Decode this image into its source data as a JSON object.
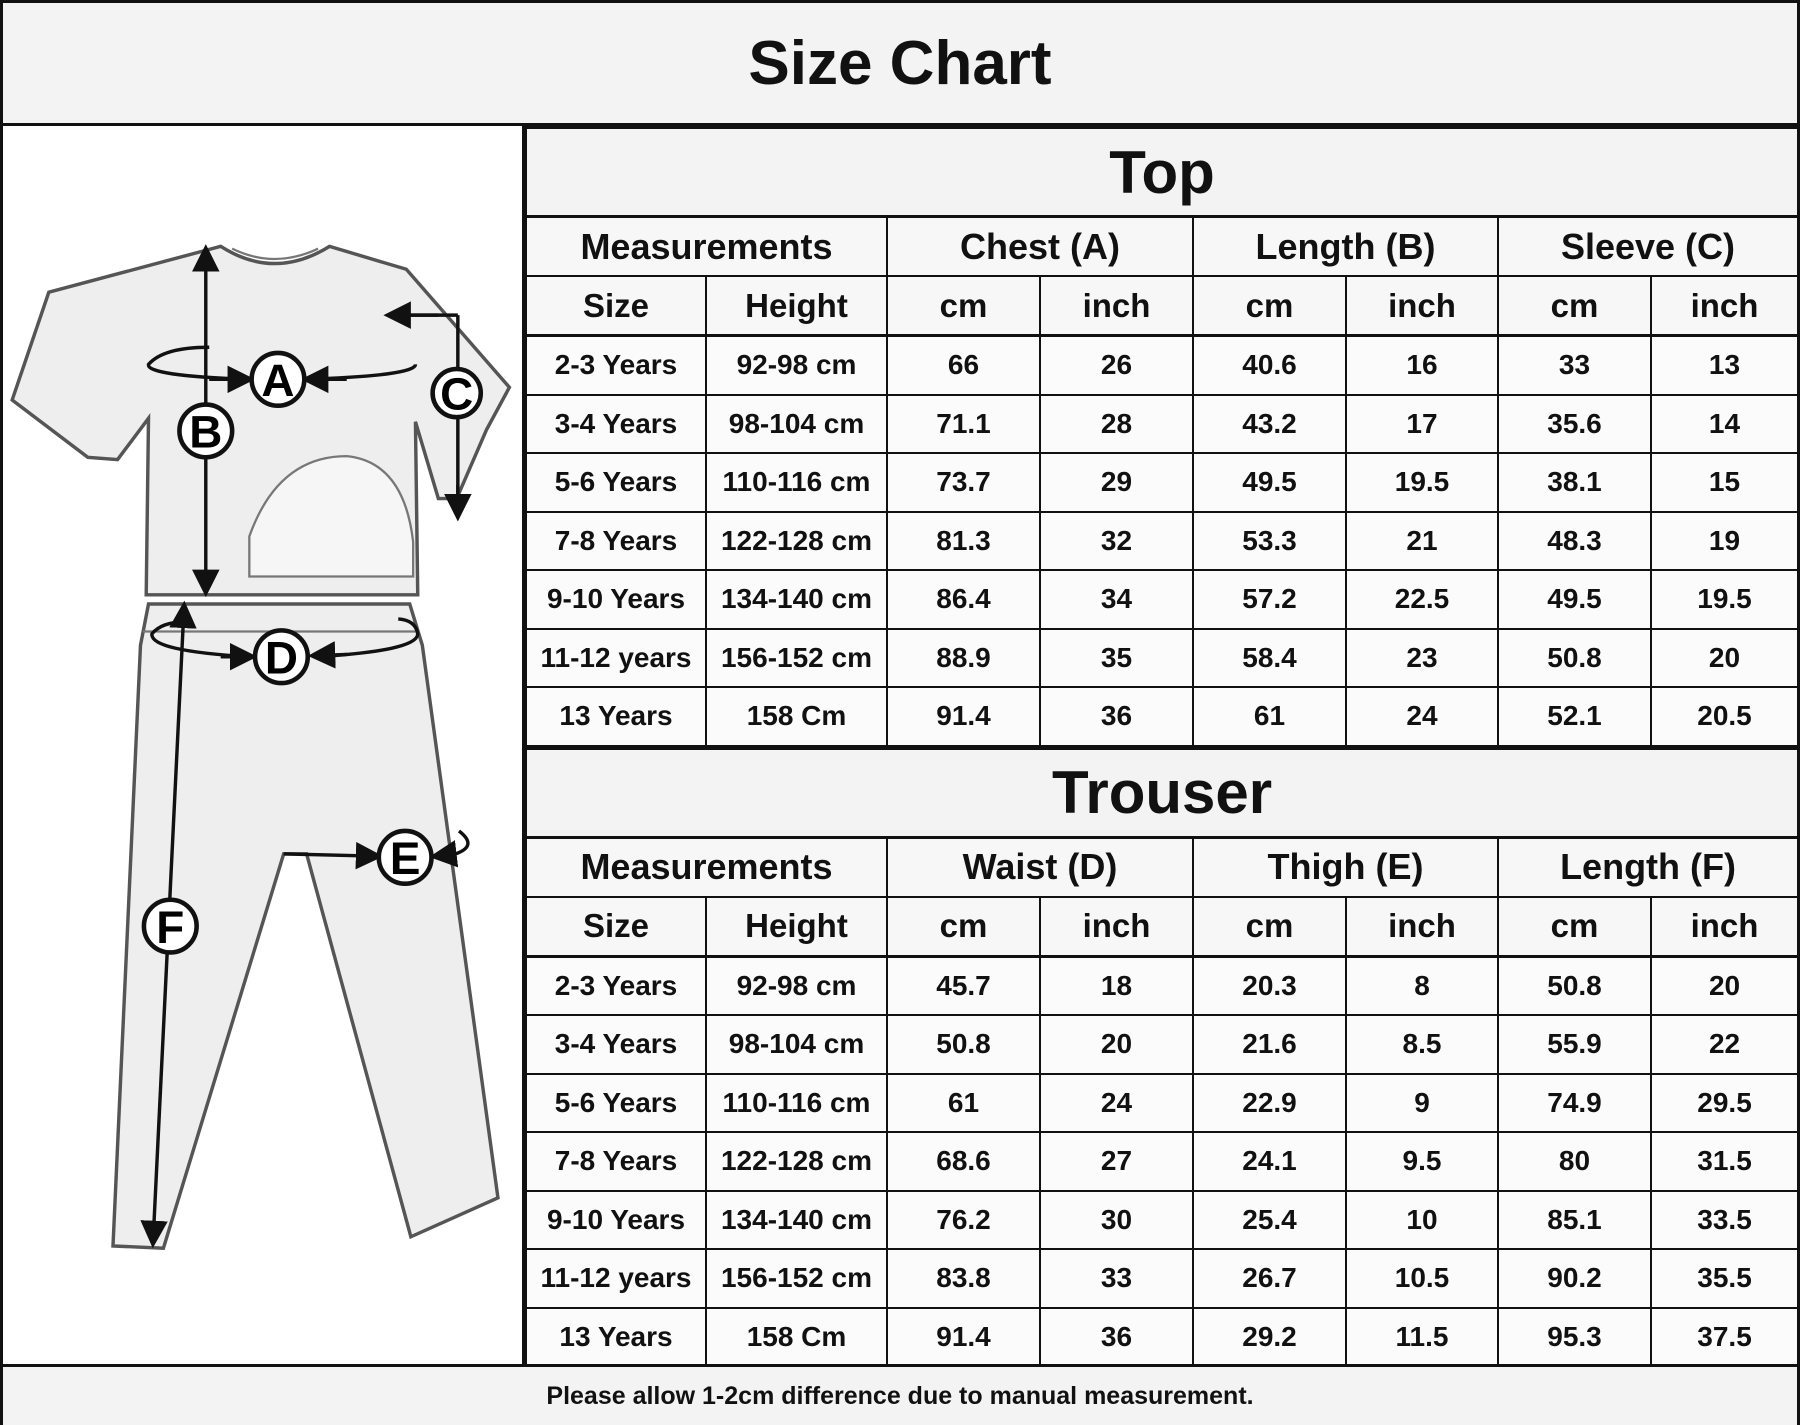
{
  "header": {
    "title": "Size Chart"
  },
  "diagram": {
    "labels": [
      "A",
      "B",
      "C",
      "D",
      "E",
      "F"
    ]
  },
  "tables": [
    {
      "title": "Top",
      "groups": [
        "Measurements",
        "Chest (A)",
        "Length (B)",
        "Sleeve (C)"
      ],
      "columns": [
        "Size",
        "Height",
        "cm",
        "inch",
        "cm",
        "inch",
        "cm",
        "inch"
      ],
      "rows": [
        [
          "2-3 Years",
          "92-98 cm",
          "66",
          "26",
          "40.6",
          "16",
          "33",
          "13"
        ],
        [
          "3-4 Years",
          "98-104 cm",
          "71.1",
          "28",
          "43.2",
          "17",
          "35.6",
          "14"
        ],
        [
          "5-6 Years",
          "110-116 cm",
          "73.7",
          "29",
          "49.5",
          "19.5",
          "38.1",
          "15"
        ],
        [
          "7-8 Years",
          "122-128 cm",
          "81.3",
          "32",
          "53.3",
          "21",
          "48.3",
          "19"
        ],
        [
          "9-10 Years",
          "134-140 cm",
          "86.4",
          "34",
          "57.2",
          "22.5",
          "49.5",
          "19.5"
        ],
        [
          "11-12 years",
          "156-152 cm",
          "88.9",
          "35",
          "58.4",
          "23",
          "50.8",
          "20"
        ],
        [
          "13 Years",
          "158 Cm",
          "91.4",
          "36",
          "61",
          "24",
          "52.1",
          "20.5"
        ]
      ]
    },
    {
      "title": "Trouser",
      "groups": [
        "Measurements",
        "Waist (D)",
        "Thigh (E)",
        "Length (F)"
      ],
      "columns": [
        "Size",
        "Height",
        "cm",
        "inch",
        "cm",
        "inch",
        "cm",
        "inch"
      ],
      "rows": [
        [
          "2-3 Years",
          "92-98 cm",
          "45.7",
          "18",
          "20.3",
          "8",
          "50.8",
          "20"
        ],
        [
          "3-4 Years",
          "98-104 cm",
          "50.8",
          "20",
          "21.6",
          "8.5",
          "55.9",
          "22"
        ],
        [
          "5-6 Years",
          "110-116 cm",
          "61",
          "24",
          "22.9",
          "9",
          "74.9",
          "29.5"
        ],
        [
          "7-8 Years",
          "122-128 cm",
          "68.6",
          "27",
          "24.1",
          "9.5",
          "80",
          "31.5"
        ],
        [
          "9-10 Years",
          "134-140 cm",
          "76.2",
          "30",
          "25.4",
          "10",
          "85.1",
          "33.5"
        ],
        [
          "11-12 years",
          "156-152 cm",
          "83.8",
          "33",
          "26.7",
          "10.5",
          "90.2",
          "35.5"
        ],
        [
          "13 Years",
          "158 Cm",
          "91.4",
          "36",
          "29.2",
          "11.5",
          "95.3",
          "37.5"
        ]
      ]
    }
  ],
  "footer": {
    "note": "Please allow 1-2cm difference due to manual measurement."
  }
}
